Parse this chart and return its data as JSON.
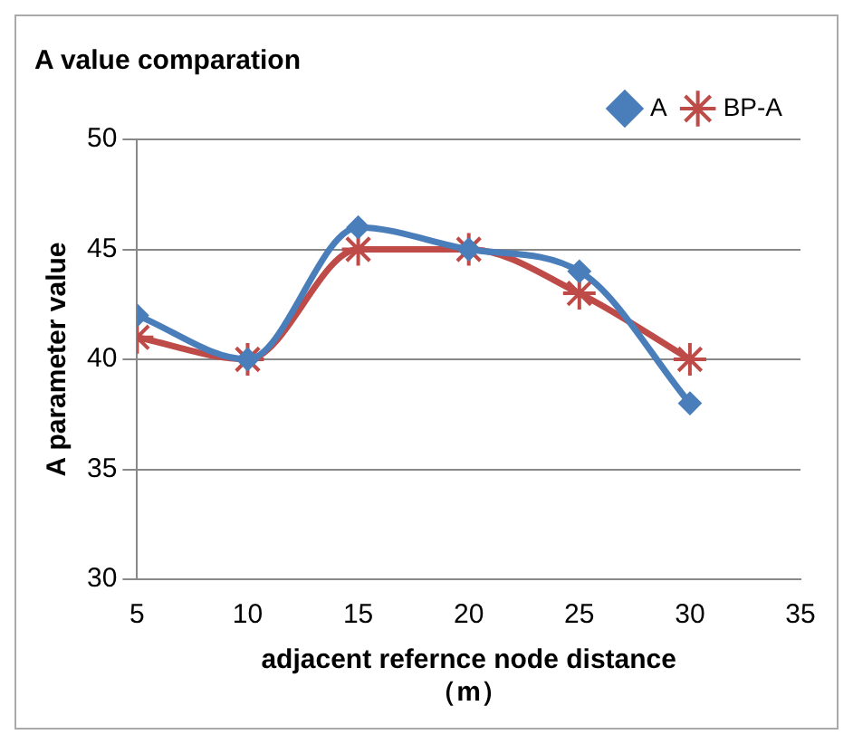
{
  "chart_data": {
    "type": "line",
    "title": "A value comparation",
    "xlabel": "adjacent refernce node distance\n（m）",
    "ylabel": "A parameter value",
    "x": [
      5,
      10,
      15,
      20,
      25,
      30
    ],
    "series": [
      {
        "name": "A",
        "color": "#4a7ebb",
        "values": [
          42,
          40,
          46,
          45,
          44,
          38
        ],
        "marker": "diamond"
      },
      {
        "name": "BP-A",
        "color": "#be4b48",
        "values": [
          41,
          40,
          45,
          45,
          43,
          40
        ],
        "marker": "cross"
      }
    ],
    "xlim": [
      5,
      35
    ],
    "xticks": [
      5,
      10,
      15,
      20,
      25,
      30,
      35
    ],
    "ylim": [
      30,
      50
    ],
    "yticks": [
      30,
      35,
      40,
      45,
      50
    ],
    "grid": "y",
    "legend": "top right"
  }
}
